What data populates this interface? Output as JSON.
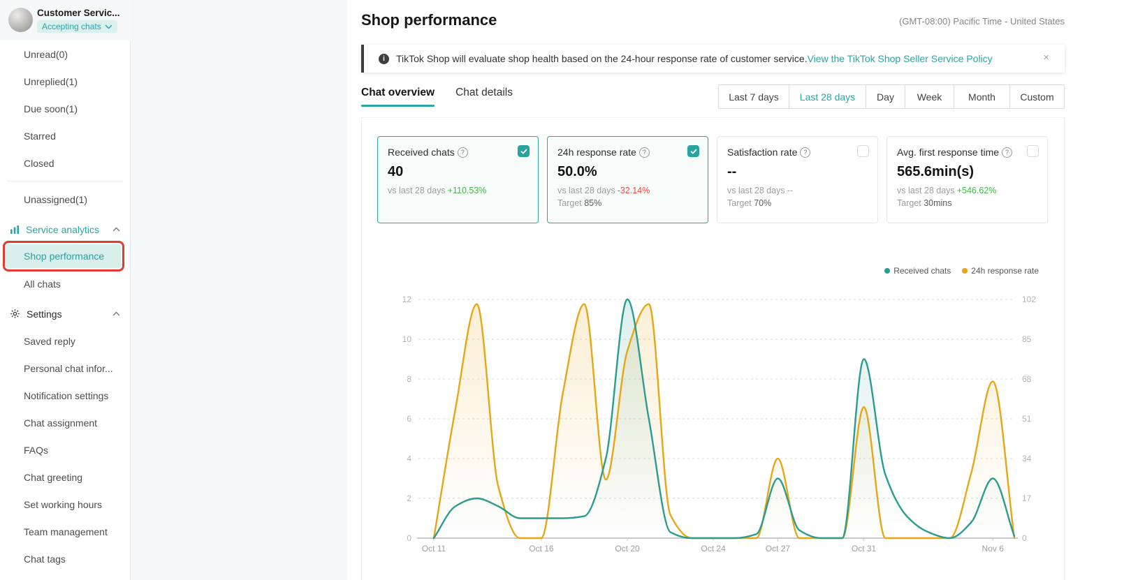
{
  "sidebar": {
    "profile": {
      "name": "Customer Servic...",
      "status": "Accepting chats"
    },
    "items": [
      {
        "label": "Unread(0)"
      },
      {
        "label": "Unreplied(1)"
      },
      {
        "label": "Due soon(1)"
      },
      {
        "label": "Starred"
      },
      {
        "label": "Closed"
      },
      {
        "type": "divider"
      },
      {
        "label": "Unassigned(1)"
      },
      {
        "label": "Service analytics",
        "type": "section",
        "icon": "bar-chart",
        "teal": true,
        "chevron": "up"
      },
      {
        "label": "Shop performance",
        "selected": true
      },
      {
        "label": "All chats"
      },
      {
        "label": "Settings",
        "type": "section",
        "icon": "gear",
        "chevron": "up"
      },
      {
        "label": "Saved reply"
      },
      {
        "label": "Personal chat infor..."
      },
      {
        "label": "Notification settings"
      },
      {
        "label": "Chat assignment"
      },
      {
        "label": "FAQs"
      },
      {
        "label": "Chat greeting"
      },
      {
        "label": "Set working hours"
      },
      {
        "label": "Team management"
      },
      {
        "label": "Chat tags"
      }
    ]
  },
  "header": {
    "title": "Shop performance",
    "timezone": "(GMT-08:00) Pacific Time - United States"
  },
  "banner": {
    "text": "TikTok Shop will evaluate shop health based on the 24-hour response rate of customer service.",
    "link": "View the TikTok Shop Seller Service Policy",
    "close": "×"
  },
  "tabs": [
    {
      "label": "Chat overview",
      "active": true
    },
    {
      "label": "Chat details",
      "active": false
    }
  ],
  "date_ranges": {
    "options": [
      "Last 7 days",
      "Last 28 days",
      "Day",
      "Week",
      "Month",
      "Custom"
    ],
    "selected": "Last 28 days"
  },
  "cards": [
    {
      "title": "Received chats",
      "checked": true,
      "value": "40",
      "compare_label": "vs last 28 days",
      "delta": "+110.53%",
      "delta_tone": "positive",
      "target_label": "",
      "target_value": "",
      "highlight": true
    },
    {
      "title": "24h response rate",
      "checked": true,
      "value": "50.0%",
      "compare_label": "vs last 28 days",
      "delta": "-32.14%",
      "delta_tone": "negative",
      "target_label": "Target",
      "target_value": "85%",
      "highlight": true
    },
    {
      "title": "Satisfaction rate",
      "checked": false,
      "value": "--",
      "compare_label": "vs last 28 days",
      "delta": "--",
      "delta_tone": "neutral",
      "target_label": "Target",
      "target_value": "70%",
      "highlight": false
    },
    {
      "title": "Avg. first response time",
      "checked": false,
      "value": "565.6min(s)",
      "compare_label": "vs last 28 days",
      "delta": "+546.62%",
      "delta_tone": "positive",
      "target_label": "Target",
      "target_value": "30mins",
      "highlight": false
    }
  ],
  "chart_data": {
    "type": "area",
    "legend_position": "top-right",
    "grid": "horizontal-dashed",
    "num_points": 28,
    "x_start_label": "Oct 11",
    "x_tick_labels": [
      "Oct 11",
      "Oct 16",
      "Oct 20",
      "Oct 24",
      "Oct 27",
      "Oct 31",
      "Nov 6"
    ],
    "x_tick_day_index": [
      0,
      5,
      9,
      13,
      16,
      20,
      26
    ],
    "left_axis": {
      "range": [
        0,
        12
      ],
      "ticks": [
        0,
        2,
        4,
        6,
        8,
        10,
        12
      ]
    },
    "right_axis": {
      "range": [
        0,
        102
      ],
      "ticks": [
        0,
        17,
        34,
        51,
        68,
        85,
        102
      ]
    },
    "series": [
      {
        "name": "Received chats",
        "axis": "left",
        "color": "#2b9c8e",
        "fill": "rgba(43,156,142,0.16)",
        "fill_to": "rgba(43,156,142,0)",
        "values": [
          0,
          1.6,
          2,
          1.6,
          1,
          1,
          1,
          1.1,
          4,
          12,
          6,
          0.3,
          0,
          0,
          0,
          0.2,
          3,
          0.4,
          0,
          0,
          9,
          3.2,
          1.1,
          0.3,
          0,
          0.8,
          3,
          0.1
        ]
      },
      {
        "name": "24h response rate",
        "axis": "right",
        "color": "#e7a615",
        "fill": "rgba(231,166,21,0.18)",
        "fill_to": "rgba(231,166,21,0)",
        "values": [
          0,
          55,
          100,
          22,
          0,
          0,
          62,
          100,
          25,
          80,
          100,
          10,
          0,
          0,
          0,
          0,
          34,
          0,
          0,
          0,
          56,
          0,
          0,
          0,
          0,
          28,
          67,
          0
        ]
      }
    ]
  },
  "colors": {
    "accent": "#2aa5a5",
    "positive": "#45b649",
    "negative": "#f04b42",
    "annotation": "#e23b33"
  }
}
